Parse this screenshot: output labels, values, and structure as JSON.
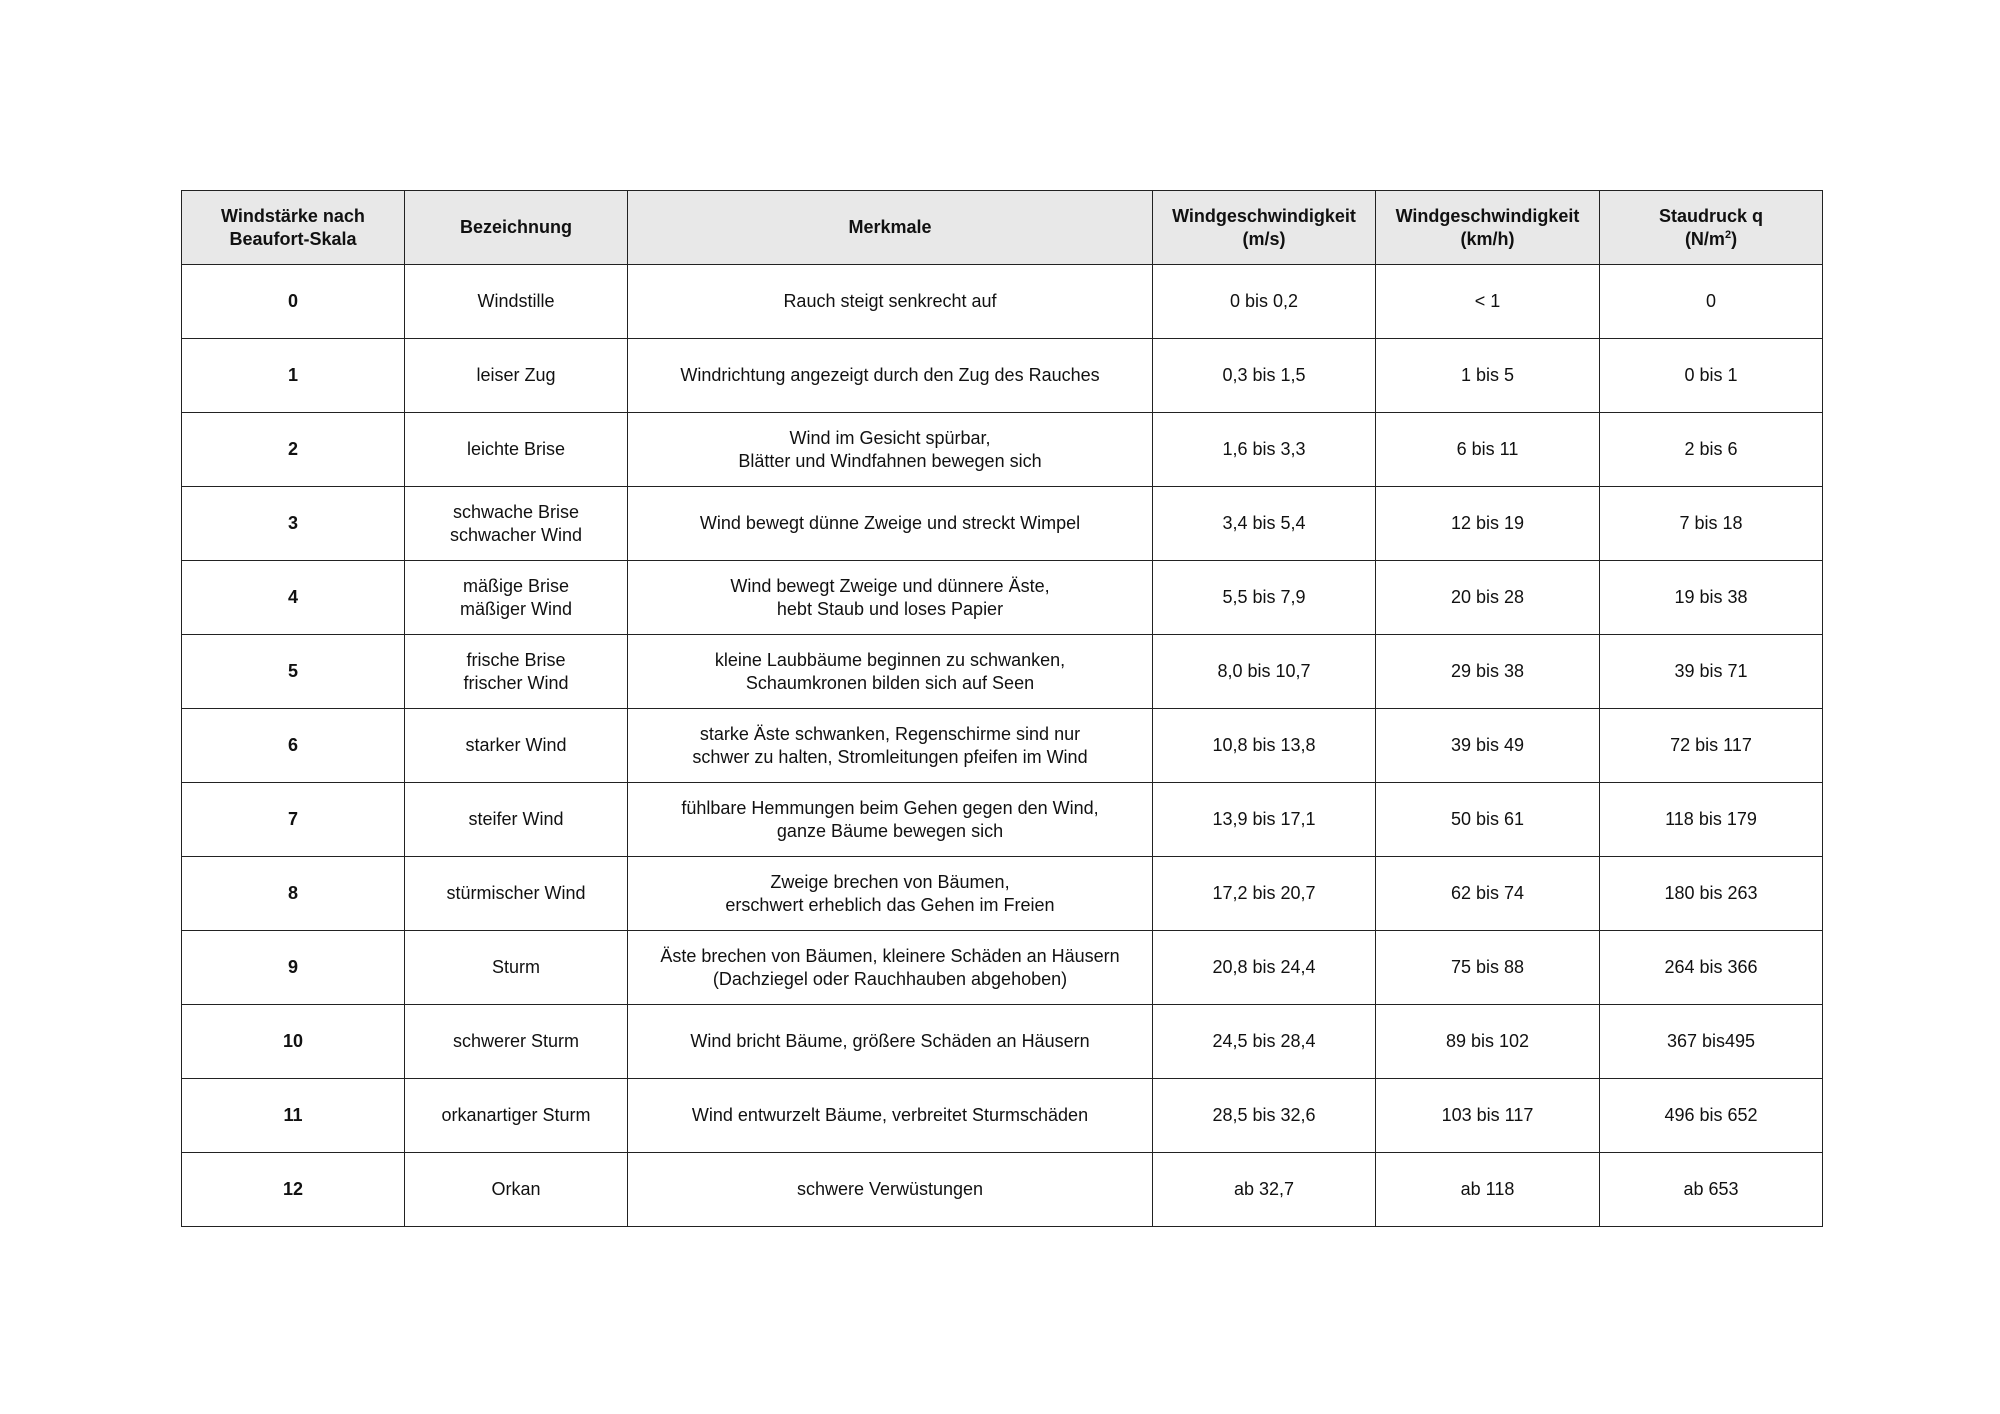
{
  "headers": {
    "beaufort": "Windstärke nach\nBeaufort-Skala",
    "name": "Bezeichnung",
    "features": "Merkmale",
    "speed_ms": "Windgeschwindigkeit\n(m/s)",
    "speed_kmh": "Windgeschwindigkeit\n(km/h)",
    "pressure_main": "Staudruck q\n(N/m",
    "pressure_sup": "2",
    "pressure_end": ")"
  },
  "rows": [
    {
      "bft": "0",
      "name": "Windstille",
      "features": "Rauch steigt senkrecht auf",
      "ms": "0 bis 0,2",
      "kmh": "< 1",
      "q": "0"
    },
    {
      "bft": "1",
      "name": "leiser Zug",
      "features": "Windrichtung angezeigt durch den Zug des Rauches",
      "ms": "0,3 bis 1,5",
      "kmh": "1 bis 5",
      "q": "0 bis 1"
    },
    {
      "bft": "2",
      "name": "leichte Brise",
      "features": "Wind im Gesicht spürbar,\nBlätter und Windfahnen bewegen sich",
      "ms": "1,6 bis 3,3",
      "kmh": "6 bis 11",
      "q": "2 bis 6"
    },
    {
      "bft": "3",
      "name": "schwache Brise\nschwacher Wind",
      "features": "Wind bewegt dünne Zweige und streckt Wimpel",
      "ms": "3,4 bis 5,4",
      "kmh": "12 bis 19",
      "q": "7 bis 18"
    },
    {
      "bft": "4",
      "name": "mäßige Brise\nmäßiger Wind",
      "features": "Wind bewegt Zweige und dünnere Äste,\nhebt Staub und loses Papier",
      "ms": "5,5 bis 7,9",
      "kmh": "20 bis 28",
      "q": "19 bis 38"
    },
    {
      "bft": "5",
      "name": "frische Brise\nfrischer Wind",
      "features": "kleine Laubbäume beginnen zu schwanken,\nSchaumkronen bilden sich auf Seen",
      "ms": "8,0 bis 10,7",
      "kmh": "29 bis 38",
      "q": "39 bis 71"
    },
    {
      "bft": "6",
      "name": "starker Wind",
      "features": "starke Äste schwanken, Regenschirme sind nur\nschwer zu halten, Stromleitungen pfeifen im Wind",
      "ms": "10,8 bis 13,8",
      "kmh": "39 bis 49",
      "q": "72 bis 117"
    },
    {
      "bft": "7",
      "name": "steifer Wind",
      "features": "fühlbare Hemmungen beim Gehen gegen den Wind,\nganze Bäume bewegen sich",
      "ms": "13,9 bis 17,1",
      "kmh": "50 bis 61",
      "q": "118 bis 179"
    },
    {
      "bft": "8",
      "name": "stürmischer Wind",
      "features": "Zweige brechen von Bäumen,\nerschwert erheblich das Gehen im Freien",
      "ms": "17,2 bis 20,7",
      "kmh": "62 bis 74",
      "q": "180 bis 263"
    },
    {
      "bft": "9",
      "name": "Sturm",
      "features": "Äste brechen von Bäumen, kleinere Schäden an Häusern\n(Dachziegel oder Rauchhauben abgehoben)",
      "ms": "20,8 bis 24,4",
      "kmh": "75 bis 88",
      "q": "264 bis 366"
    },
    {
      "bft": "10",
      "name": "schwerer Sturm",
      "features": "Wind bricht Bäume, größere Schäden an Häusern",
      "ms": "24,5 bis 28,4",
      "kmh": "89 bis 102",
      "q": "367 bis495"
    },
    {
      "bft": "11",
      "name": "orkanartiger Sturm",
      "features": "Wind entwurzelt Bäume, verbreitet Sturmschäden",
      "ms": "28,5 bis 32,6",
      "kmh": "103 bis 117",
      "q": "496 bis 652"
    },
    {
      "bft": "12",
      "name": "Orkan",
      "features": "schwere Verwüstungen",
      "ms": "ab 32,7",
      "kmh": "ab 118",
      "q": "ab 653"
    }
  ]
}
